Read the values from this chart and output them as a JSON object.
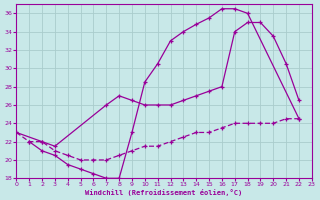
{
  "xlabel": "Windchill (Refroidissement éolien,°C)",
  "xlim": [
    0,
    23
  ],
  "ylim": [
    18,
    37
  ],
  "yticks": [
    18,
    20,
    22,
    24,
    26,
    28,
    30,
    32,
    34,
    36
  ],
  "xticks": [
    0,
    1,
    2,
    3,
    4,
    5,
    6,
    7,
    8,
    9,
    10,
    11,
    12,
    13,
    14,
    15,
    16,
    17,
    18,
    19,
    20,
    21,
    22,
    23
  ],
  "line_color": "#990099",
  "background_color": "#c8e8e8",
  "grid_color": "#aacccc",
  "line1_x": [
    1,
    2,
    3,
    4,
    5,
    6,
    7,
    8,
    9,
    10,
    11,
    12,
    13,
    14,
    15,
    16,
    17,
    18,
    22
  ],
  "line1_y": [
    22,
    21,
    20.5,
    19.5,
    19,
    18.5,
    18,
    18,
    23,
    28.5,
    30.5,
    33,
    34,
    34.8,
    35.5,
    36.5,
    36.5,
    36,
    24.5
  ],
  "line2_x": [
    0,
    2,
    3,
    7,
    8,
    9,
    10,
    11,
    12,
    13,
    14,
    15,
    16,
    17,
    18,
    19,
    20,
    21,
    22
  ],
  "line2_y": [
    23,
    22,
    21.5,
    26,
    27,
    26.5,
    26,
    26,
    26,
    26.5,
    27,
    27.5,
    28,
    34,
    35,
    35,
    33.5,
    30.5,
    26.5
  ],
  "line3_x": [
    0,
    1,
    2,
    3,
    4,
    5,
    6,
    7,
    8,
    9,
    10,
    11,
    12,
    13,
    14,
    15,
    16,
    17,
    18,
    19,
    20,
    21,
    22
  ],
  "line3_y": [
    23,
    22,
    22,
    21,
    20.5,
    20,
    20,
    20,
    20.5,
    21,
    21.5,
    21.5,
    22,
    22.5,
    23,
    23,
    23.5,
    24,
    24,
    24,
    24,
    24.5,
    24.5
  ],
  "line4_x": [
    1,
    2,
    3,
    4,
    5,
    6,
    7,
    8
  ],
  "line4_y": [
    22,
    21,
    20.5,
    19.5,
    19,
    18.5,
    18,
    23
  ]
}
